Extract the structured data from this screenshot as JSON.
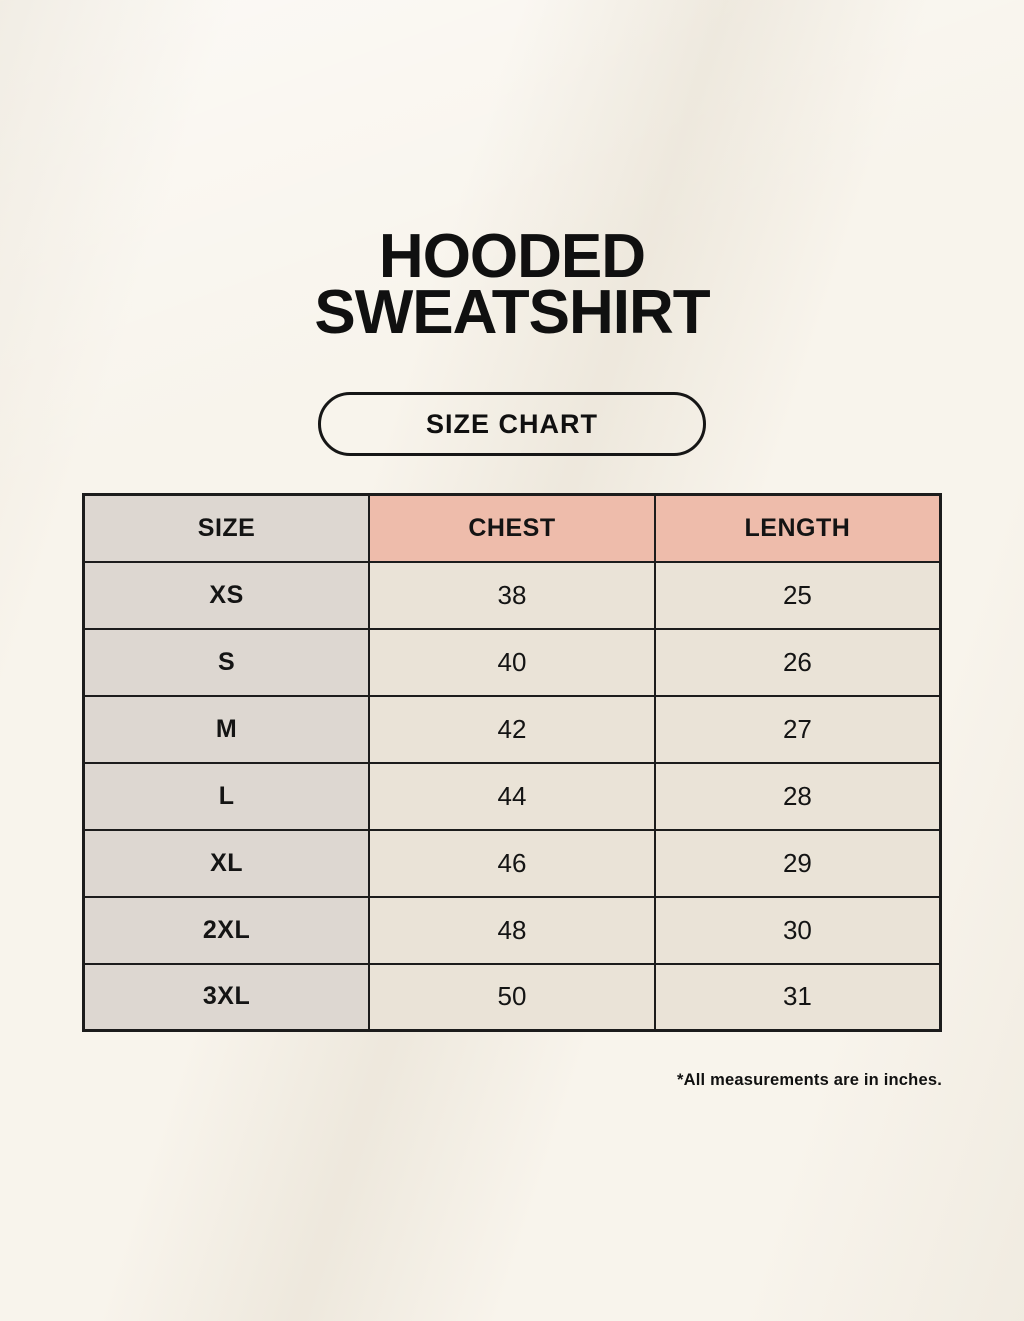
{
  "title": {
    "line1": "HOODED",
    "line2": "SWEATSHIRT"
  },
  "button": {
    "label": "SIZE CHART"
  },
  "table": {
    "headers": [
      "SIZE",
      "CHEST",
      "LENGTH"
    ],
    "rows": [
      {
        "size": "XS",
        "chest": "38",
        "length": "25"
      },
      {
        "size": "S",
        "chest": "40",
        "length": "26"
      },
      {
        "size": "M",
        "chest": "42",
        "length": "27"
      },
      {
        "size": "L",
        "chest": "44",
        "length": "28"
      },
      {
        "size": "XL",
        "chest": "46",
        "length": "29"
      },
      {
        "size": "2XL",
        "chest": "48",
        "length": "30"
      },
      {
        "size": "3XL",
        "chest": "50",
        "length": "31"
      }
    ]
  },
  "footnote": "*All measurements are in inches.",
  "colors": {
    "page_bg": "#f8f4ec",
    "label_cell_bg": "#ddd7d1",
    "accent_header_bg": "#eebcab",
    "data_cell_bg": "#eae3d7",
    "table_border": "#1c1c1c",
    "text": "#141414"
  }
}
